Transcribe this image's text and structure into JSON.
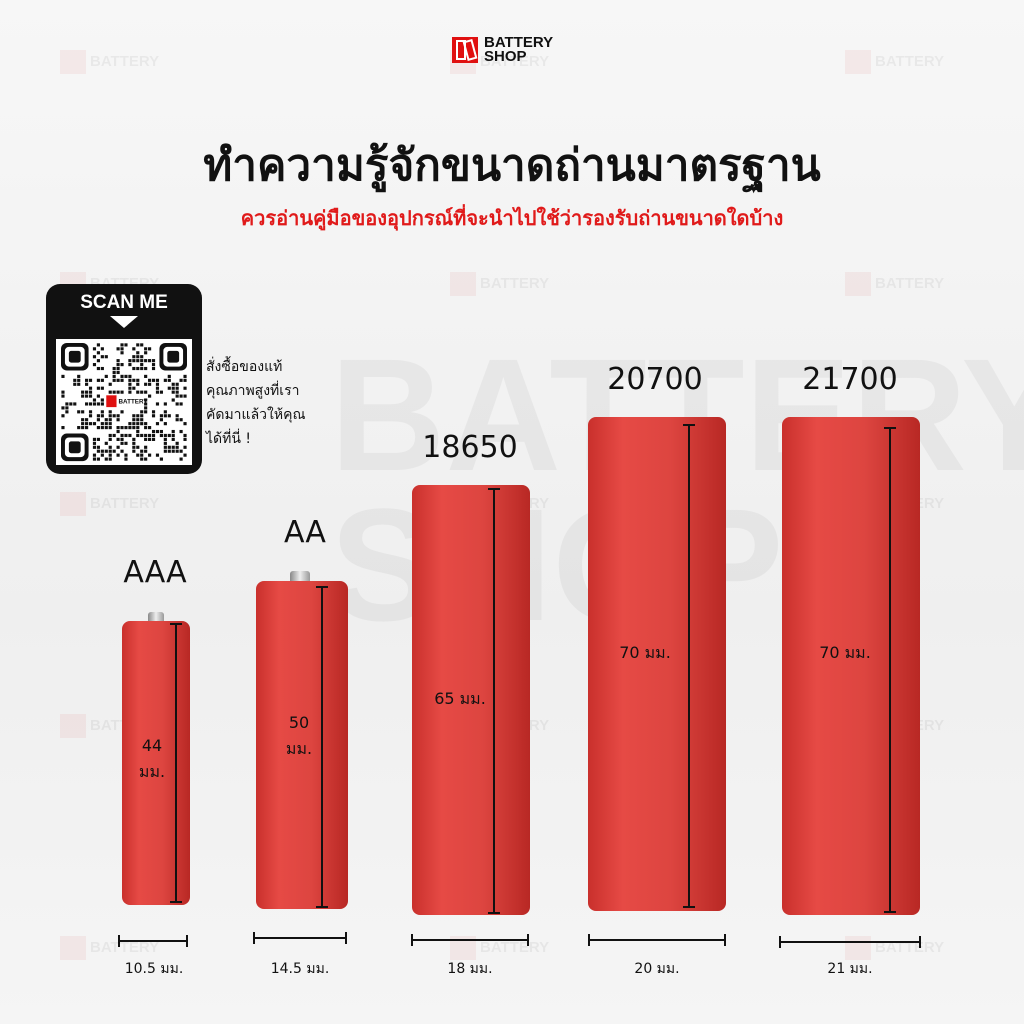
{
  "brand": {
    "line1": "BATTERY",
    "line2": "SHOP",
    "color": "#e01010"
  },
  "title": "ทำความรู้จักขนาดถ่านมาตรฐาน",
  "subtitle": "ควรอ่านคู่มือของอุปกรณ์ที่จะนำไปใช้ว่ารองรับถ่านขนาดใดบ้าง",
  "qr": {
    "label": "SCAN ME",
    "text": [
      "สั่งซื้อของแท้",
      "คุณภาพสูงที่เรา",
      "คัดมาแล้วให้คุณ",
      "ได้ที่นี่ !"
    ]
  },
  "batteries": [
    {
      "name": "AAA",
      "height_label": "44 มม.",
      "width_label": "10.5 มม."
    },
    {
      "name": "AA",
      "height_label": "50 มม.",
      "width_label": "14.5 มม."
    },
    {
      "name": "18650",
      "height_label": "65 มม.",
      "width_label": "18 มม."
    },
    {
      "name": "20700",
      "height_label": "70 มม.",
      "width_label": "20 มม."
    },
    {
      "name": "21700",
      "height_label": "70 มม.",
      "width_label": "21 มม."
    }
  ],
  "colors": {
    "accent": "#e01a1a",
    "battery": "#dd4540"
  }
}
